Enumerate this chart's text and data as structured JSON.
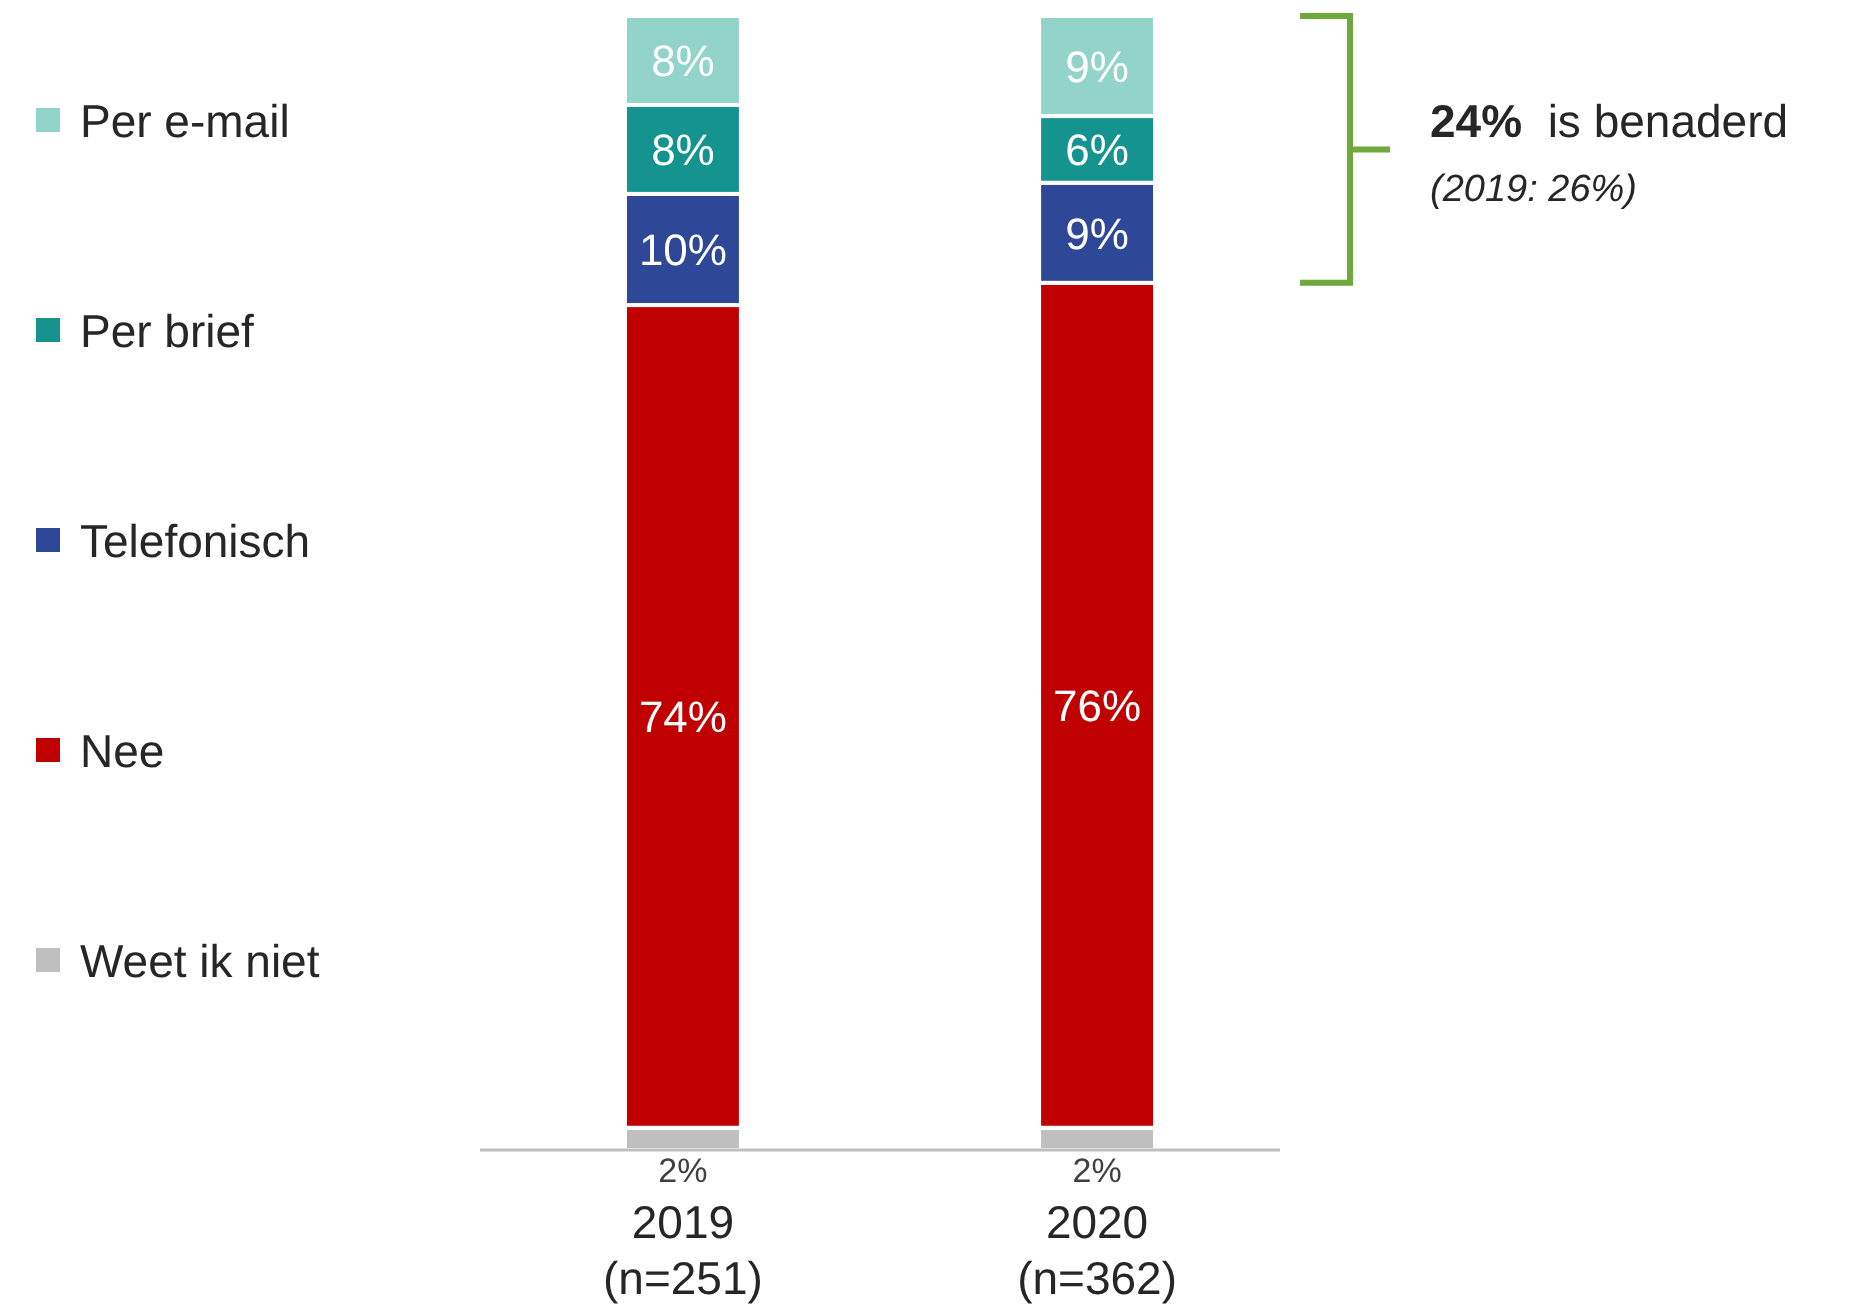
{
  "chart_data": {
    "type": "bar",
    "stacked": true,
    "categories": [
      "2019\n(n=251)",
      "2020\n(n=362)"
    ],
    "series": [
      {
        "name": "Weet ik niet",
        "color": "#bfbfbf",
        "values": [
          2,
          2
        ],
        "value_labels": [
          "2%",
          "2%"
        ]
      },
      {
        "name": "Nee",
        "color": "#c00000",
        "values": [
          74,
          76
        ],
        "value_labels": [
          "74%",
          "76%"
        ]
      },
      {
        "name": "Telefonisch",
        "color": "#2f4797",
        "values": [
          10,
          9
        ],
        "value_labels": [
          "10%",
          "9%"
        ]
      },
      {
        "name": "Per brief",
        "color": "#15938f",
        "values": [
          8,
          6
        ],
        "value_labels": [
          "8%",
          "6%"
        ]
      },
      {
        "name": "Per e-mail",
        "color": "#92d3ca",
        "values": [
          8,
          9
        ],
        "value_labels": [
          "8%",
          "9%"
        ]
      }
    ],
    "legend": "left",
    "annotations": [
      "24%  is benaderd",
      "(2019: 26%)"
    ]
  }
}
